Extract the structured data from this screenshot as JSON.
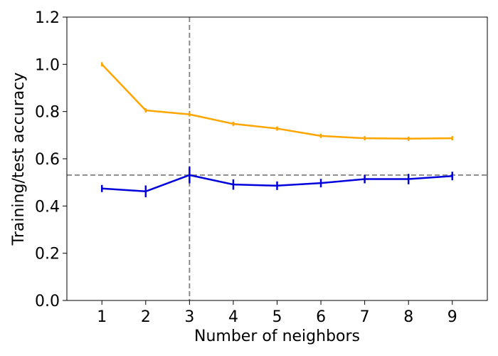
{
  "chart_data": {
    "type": "line",
    "title": "",
    "xlabel": "Number of neighbors",
    "ylabel": "Training/test accuracy",
    "x": [
      1,
      2,
      3,
      4,
      5,
      6,
      7,
      8,
      9
    ],
    "xlim": [
      0.2,
      9.8
    ],
    "ylim": [
      0.0,
      1.2
    ],
    "x_ticks": [
      "1",
      "2",
      "3",
      "4",
      "5",
      "6",
      "7",
      "8",
      "9"
    ],
    "y_ticks": [
      "0.0",
      "0.2",
      "0.4",
      "0.6",
      "0.8",
      "1.0",
      "1.2"
    ],
    "grid": false,
    "legend": "none",
    "series": [
      {
        "values": [
          1.0,
          0.805,
          0.788,
          0.748,
          0.728,
          0.697,
          0.687,
          0.685,
          0.687
        ],
        "errors": [
          0.0,
          0.008,
          0.0,
          0.005,
          0.004,
          0.003,
          0.003,
          0.002,
          0.002
        ],
        "color": "#FFA500"
      },
      {
        "values": [
          0.474,
          0.462,
          0.531,
          0.491,
          0.486,
          0.497,
          0.514,
          0.514,
          0.527
        ],
        "errors": [
          0.015,
          0.025,
          0.035,
          0.022,
          0.018,
          0.018,
          0.018,
          0.022,
          0.018
        ],
        "color": "#0000DD"
      }
    ],
    "reference_lines": {
      "vertical_x": 3,
      "horizontal_y": 0.531,
      "color": "#808080",
      "style": "dashed"
    }
  }
}
